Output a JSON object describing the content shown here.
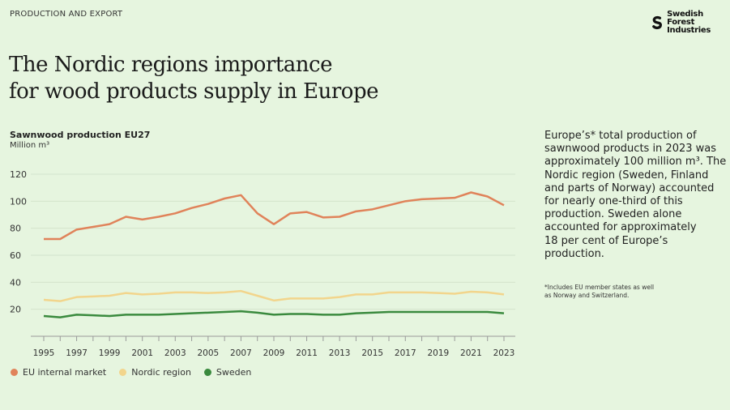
{
  "header": {
    "kicker": "PRODUCTION AND EXPORT",
    "logo_text": [
      "Swedish Forest",
      "Industries"
    ]
  },
  "title_lines": [
    "The Nordic regions importance",
    "for wood products supply in Europe"
  ],
  "side_text": {
    "lines": [
      "Europe’s* total production of",
      "sawnwood products in 2023 was",
      "approximately 100 million m³. The",
      "Nordic region (Sweden, Finland",
      "and parts of Norway) accounted",
      "for nearly one-third of this",
      "production. Sweden alone",
      "accounted for approximately",
      "18 per cent of Europe’s",
      "production."
    ],
    "footnote": [
      "*Includes EU member states as well",
      "as Norway and Switzerland."
    ]
  },
  "chart_data": {
    "type": "line",
    "title": "Sawnwood production EU27",
    "ylabel": "Million m³",
    "ylim": [
      0,
      120
    ],
    "yticks": [
      20,
      40,
      60,
      80,
      100,
      120
    ],
    "x": [
      1995,
      1996,
      1997,
      1998,
      1999,
      2000,
      2001,
      2002,
      2003,
      2004,
      2005,
      2006,
      2007,
      2008,
      2009,
      2010,
      2011,
      2012,
      2013,
      2014,
      2015,
      2016,
      2017,
      2018,
      2019,
      2020,
      2021,
      2022,
      2023
    ],
    "xticklabels": [
      "1995",
      "1997",
      "1999",
      "2001",
      "2003",
      "2005",
      "2007",
      "2009",
      "2011",
      "2013",
      "2015",
      "2017",
      "2019",
      "2021",
      "2023"
    ],
    "grid": true,
    "legend_position": "bottom-left",
    "series": [
      {
        "name": "EU internal market",
        "color": "#e0835a",
        "values": [
          72,
          72,
          79,
          81,
          83,
          88.5,
          86.5,
          88.5,
          91,
          95,
          98,
          102,
          104.5,
          91,
          83,
          91,
          92,
          88,
          88.5,
          92.5,
          94,
          97,
          100,
          101.5,
          102,
          102.5,
          106.5,
          103.5,
          97
        ]
      },
      {
        "name": "Nordic region",
        "color": "#f2d58c",
        "values": [
          27,
          26,
          29,
          29.5,
          30,
          32,
          31,
          31.5,
          32.5,
          32.5,
          32,
          32.5,
          33.5,
          30,
          26.5,
          28,
          28,
          28,
          29,
          31,
          31,
          32.5,
          32.5,
          32.5,
          32,
          31.5,
          33,
          32.5,
          31
        ]
      },
      {
        "name": "Sweden",
        "color": "#3a8a3e",
        "values": [
          15,
          14,
          16,
          15.5,
          15,
          16,
          16,
          16,
          16.5,
          17,
          17.5,
          18,
          18.5,
          17.5,
          16,
          16.5,
          16.5,
          16,
          16,
          17,
          17.5,
          18,
          18,
          18,
          18,
          18,
          18,
          18,
          17
        ]
      }
    ]
  }
}
